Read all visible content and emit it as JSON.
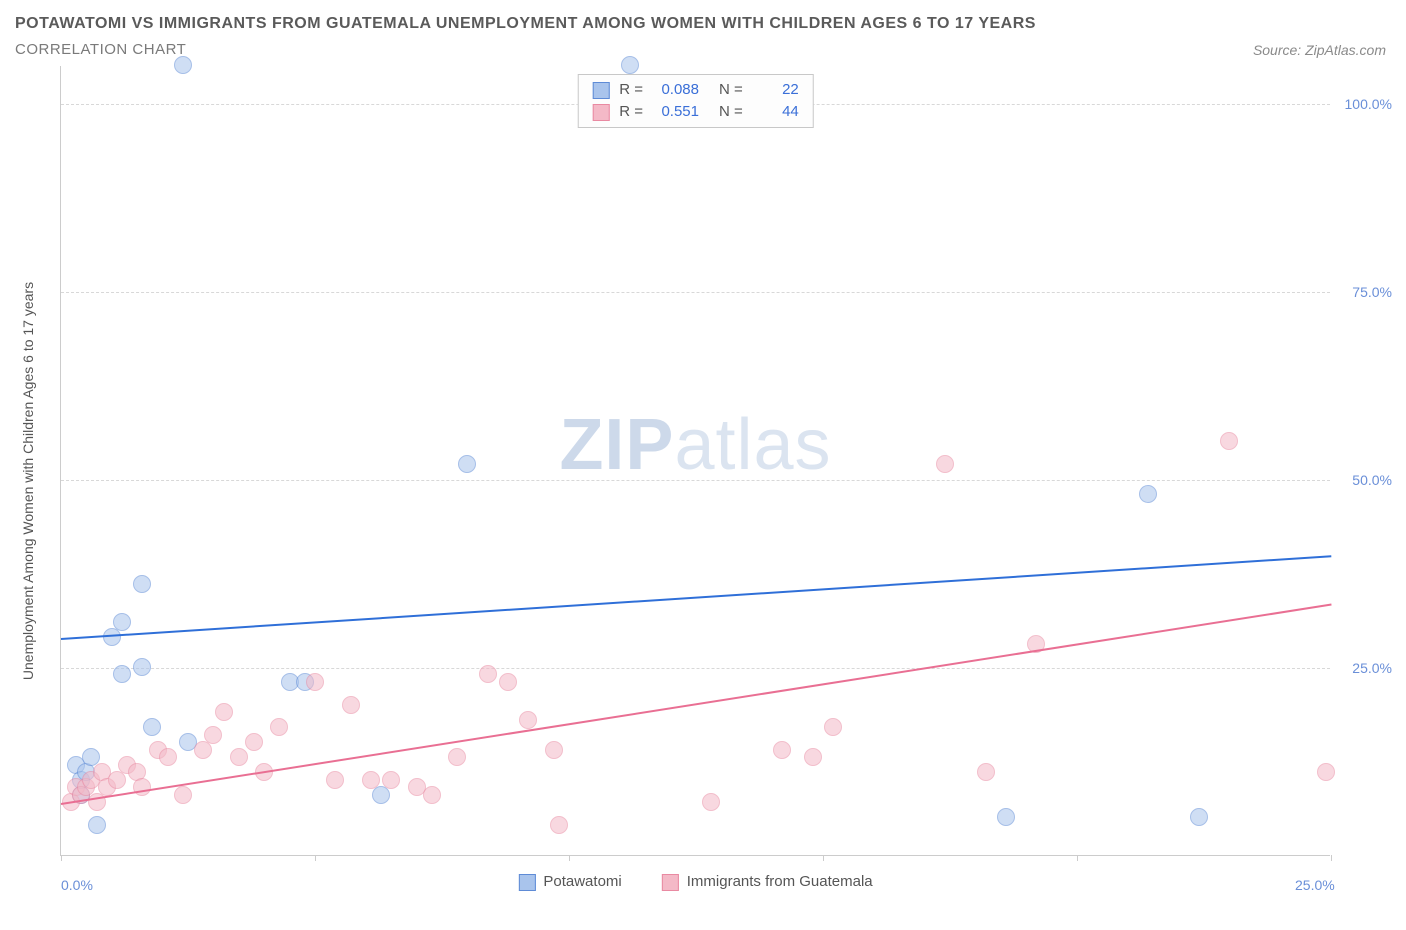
{
  "header": {
    "title_line1": "POTAWATOMI VS IMMIGRANTS FROM GUATEMALA UNEMPLOYMENT AMONG WOMEN WITH CHILDREN AGES 6 TO 17 YEARS",
    "title_line2": "CORRELATION CHART",
    "source_prefix": "Source: ",
    "source_name": "ZipAtlas.com"
  },
  "chart": {
    "type": "scatter",
    "y_axis_label": "Unemployment Among Women with Children Ages 6 to 17 years",
    "xlim": [
      0,
      25
    ],
    "ylim": [
      0,
      105
    ],
    "x_ticks": [
      0,
      5,
      10,
      15,
      20,
      25
    ],
    "x_tick_labels_shown": {
      "0": "0.0%",
      "25": "25.0%"
    },
    "y_gridlines": [
      25,
      50,
      75,
      100
    ],
    "y_tick_labels": {
      "25": "25.0%",
      "50": "50.0%",
      "75": "75.0%",
      "100": "100.0%"
    },
    "background_color": "#ffffff",
    "grid_color": "#d8d8d8",
    "axis_color": "#cccccc",
    "tick_label_color": "#6a8fd8",
    "point_radius": 9,
    "point_opacity": 0.55,
    "watermark": {
      "bold": "ZIP",
      "rest": "atlas"
    },
    "series": [
      {
        "name": "Potawatomi",
        "color_fill": "#a9c4ec",
        "color_stroke": "#5e8bd6",
        "R": "0.088",
        "N": "22",
        "trend": {
          "x1": 0,
          "y1": 29,
          "x2": 25,
          "y2": 40,
          "color": "#2f6fd8"
        },
        "points": [
          [
            0.3,
            12
          ],
          [
            0.4,
            8
          ],
          [
            0.4,
            10
          ],
          [
            0.5,
            11
          ],
          [
            0.6,
            13
          ],
          [
            0.7,
            4
          ],
          [
            1.0,
            29
          ],
          [
            1.2,
            24
          ],
          [
            1.2,
            31
          ],
          [
            1.6,
            25
          ],
          [
            1.8,
            17
          ],
          [
            1.6,
            36
          ],
          [
            2.4,
            105
          ],
          [
            2.5,
            15
          ],
          [
            4.5,
            23
          ],
          [
            4.8,
            23
          ],
          [
            6.3,
            8
          ],
          [
            8.0,
            52
          ],
          [
            11.2,
            105
          ],
          [
            18.6,
            5
          ],
          [
            21.4,
            48
          ],
          [
            22.4,
            5
          ]
        ]
      },
      {
        "name": "Immigrants from Guatemala",
        "color_fill": "#f4b9c7",
        "color_stroke": "#e98aa2",
        "R": "0.551",
        "N": "44",
        "trend": {
          "x1": 0,
          "y1": 7,
          "x2": 25,
          "y2": 33.5,
          "color": "#e96f93"
        },
        "points": [
          [
            0.2,
            7
          ],
          [
            0.3,
            9
          ],
          [
            0.4,
            8
          ],
          [
            0.5,
            9
          ],
          [
            0.6,
            10
          ],
          [
            0.7,
            7
          ],
          [
            0.8,
            11
          ],
          [
            0.9,
            9
          ],
          [
            1.1,
            10
          ],
          [
            1.3,
            12
          ],
          [
            1.5,
            11
          ],
          [
            1.6,
            9
          ],
          [
            1.9,
            14
          ],
          [
            2.1,
            13
          ],
          [
            2.4,
            8
          ],
          [
            2.8,
            14
          ],
          [
            3.0,
            16
          ],
          [
            3.2,
            19
          ],
          [
            3.5,
            13
          ],
          [
            3.8,
            15
          ],
          [
            4.0,
            11
          ],
          [
            4.3,
            17
          ],
          [
            5.0,
            23
          ],
          [
            5.4,
            10
          ],
          [
            5.7,
            20
          ],
          [
            6.1,
            10
          ],
          [
            6.5,
            10
          ],
          [
            7.0,
            9
          ],
          [
            7.3,
            8
          ],
          [
            7.8,
            13
          ],
          [
            8.4,
            24
          ],
          [
            8.8,
            23
          ],
          [
            9.2,
            18
          ],
          [
            9.7,
            14
          ],
          [
            9.8,
            4
          ],
          [
            12.8,
            7
          ],
          [
            14.2,
            14
          ],
          [
            14.8,
            13
          ],
          [
            15.2,
            17
          ],
          [
            17.4,
            52
          ],
          [
            18.2,
            11
          ],
          [
            19.2,
            28
          ],
          [
            23.0,
            55
          ],
          [
            24.9,
            11
          ]
        ]
      }
    ],
    "stats_box": {
      "R_label": "R =",
      "N_label": "N ="
    },
    "bottom_legend": true
  }
}
